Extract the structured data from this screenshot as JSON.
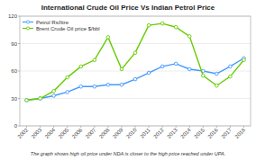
{
  "chart_data": {
    "type": "line",
    "title": "International Crude Oil Price Vs Indian Petrol Price",
    "subtitle": "The graph shows high oil price under NDA is closer to the high price reached under UPA.",
    "x": [
      2002,
      2003,
      2004,
      2005,
      2006,
      2007,
      2008,
      2009,
      2010,
      2011,
      2012,
      2013,
      2014,
      2015,
      2016,
      2017,
      2018
    ],
    "series": [
      {
        "name": "Petrol Rs/litre",
        "color": "#4499ff",
        "marker": "circle",
        "values": [
          28,
          30,
          33,
          37,
          43,
          43,
          45,
          45,
          51,
          58,
          65,
          68,
          62,
          60,
          57,
          65,
          74
        ]
      },
      {
        "name": "Brent Crude Oil price $/bbl",
        "color": "#66cc00",
        "marker": "circle",
        "values": [
          28,
          30,
          38,
          53,
          65,
          72,
          97,
          62,
          80,
          110,
          112,
          108,
          98,
          55,
          44,
          54,
          72
        ]
      }
    ],
    "xlim": [
      2001.5,
      2018.5
    ],
    "xticks": [
      2002,
      2003,
      2004,
      2005,
      2006,
      2007,
      2008,
      2009,
      2010,
      2011,
      2012,
      2013,
      2014,
      2015,
      2016,
      2017,
      2018
    ],
    "ylim": [
      0,
      120
    ],
    "yticks": [
      0,
      30,
      60,
      90,
      120
    ],
    "grid": true,
    "legend": "upper left"
  }
}
